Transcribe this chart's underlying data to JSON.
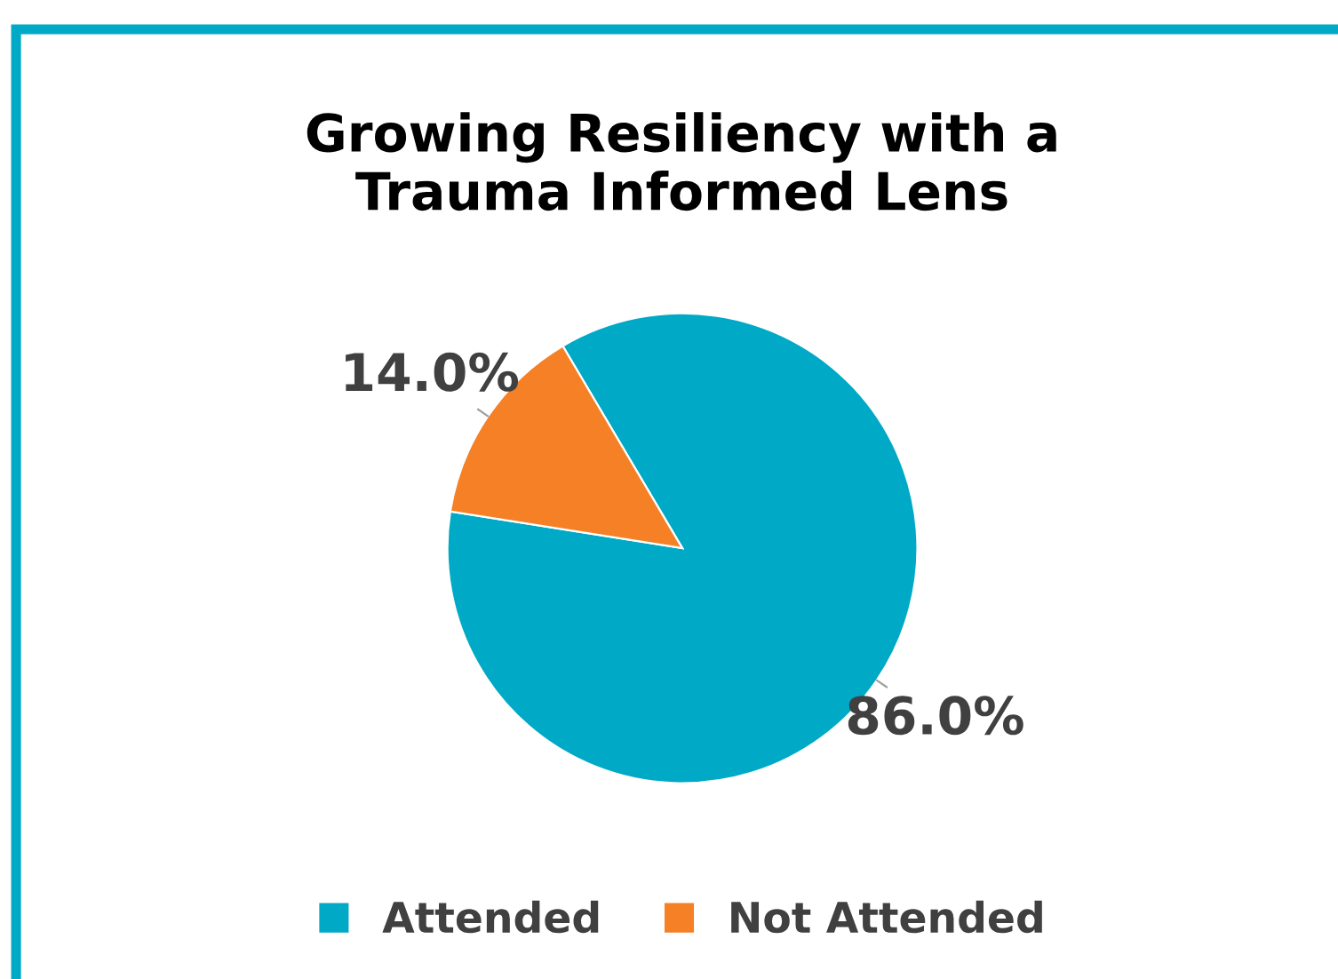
{
  "chart_data": {
    "type": "pie",
    "title": "Growing Resiliency with a\nTrauma Informed Lens",
    "categories": [
      "Attended",
      "Not Attended"
    ],
    "values": [
      86.0,
      14.0
    ],
    "value_labels": [
      "86.0%",
      "14.0%"
    ],
    "colors": [
      "#00a9c6",
      "#f58025"
    ],
    "legend": "bottom"
  }
}
